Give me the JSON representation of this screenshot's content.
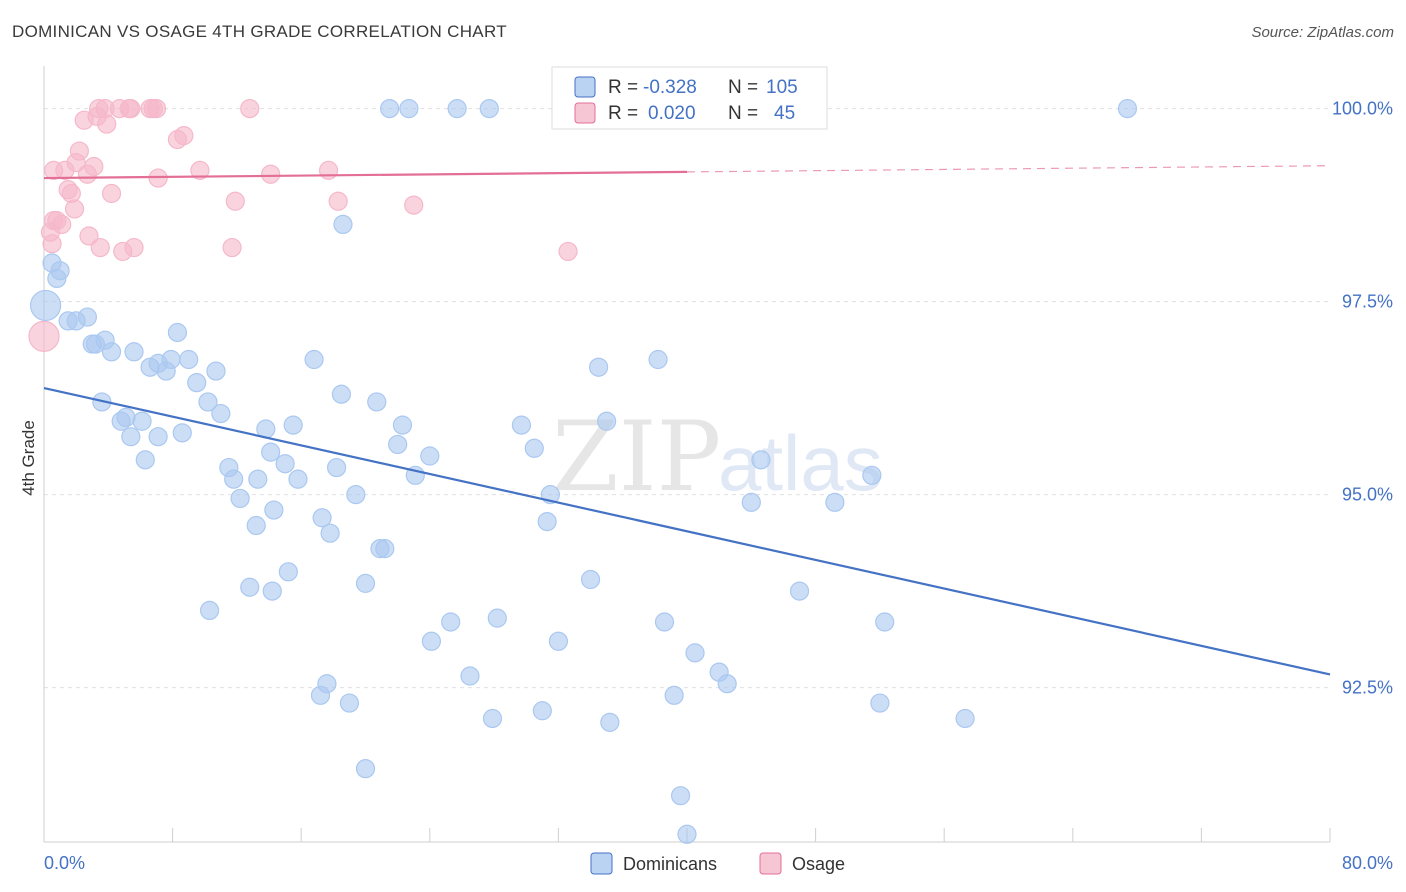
{
  "title": "DOMINICAN VS OSAGE 4TH GRADE CORRELATION CHART",
  "source": "Source: ZipAtlas.com",
  "watermark": {
    "zip": "ZIP",
    "atlas": "atlas"
  },
  "legend": {
    "rows": [
      {
        "r_label": "R = ",
        "r_value": "-0.328",
        "n_label": "N = ",
        "n_value": "105",
        "color": "#aac8f0"
      },
      {
        "r_label": "R = ",
        "r_value": "0.020",
        "n_label": "N = ",
        "n_value": "45",
        "color": "#f5b8ca"
      }
    ]
  },
  "chart_data": {
    "type": "scatter",
    "title": "DOMINICAN VS OSAGE 4TH GRADE CORRELATION CHART",
    "xlabel": "",
    "ylabel": "4th Grade",
    "xlim": [
      0,
      80
    ],
    "ylim": [
      90.5,
      100.5
    ],
    "x_tick_labels": [
      "0.0%",
      "80.0%"
    ],
    "y_ticks": [
      92.5,
      95.0,
      97.5,
      100.0
    ],
    "y_tick_labels": [
      "92.5%",
      "95.0%",
      "97.5%",
      "100.0%"
    ],
    "grid": true,
    "legend_position": "top-center",
    "series": [
      {
        "name": "Dominicans",
        "color": "#4472c4",
        "fill": "#aac8f0",
        "trend": {
          "x": [
            0,
            80
          ],
          "y": [
            96.38,
            92.67
          ]
        },
        "points": [
          [
            0.1,
            97.45
          ],
          [
            0.5,
            98.0
          ],
          [
            0.8,
            97.8
          ],
          [
            1.0,
            97.9
          ],
          [
            1.5,
            97.25
          ],
          [
            2.0,
            97.25
          ],
          [
            2.7,
            97.3
          ],
          [
            3.0,
            96.95
          ],
          [
            3.2,
            96.95
          ],
          [
            3.8,
            97.0
          ],
          [
            4.2,
            96.85
          ],
          [
            5.6,
            96.85
          ],
          [
            6.6,
            96.65
          ],
          [
            7.1,
            96.7
          ],
          [
            7.6,
            96.6
          ],
          [
            7.9,
            96.75
          ],
          [
            8.3,
            97.1
          ],
          [
            9.0,
            96.75
          ],
          [
            9.5,
            96.45
          ],
          [
            10.7,
            96.6
          ],
          [
            3.6,
            96.2
          ],
          [
            4.8,
            95.95
          ],
          [
            5.1,
            96.0
          ],
          [
            5.4,
            95.75
          ],
          [
            6.1,
            95.95
          ],
          [
            6.3,
            95.45
          ],
          [
            7.1,
            95.75
          ],
          [
            8.6,
            95.8
          ],
          [
            10.2,
            96.2
          ],
          [
            11.0,
            96.05
          ],
          [
            11.5,
            95.35
          ],
          [
            11.8,
            95.2
          ],
          [
            12.2,
            94.95
          ],
          [
            13.3,
            95.2
          ],
          [
            13.8,
            95.85
          ],
          [
            14.1,
            95.55
          ],
          [
            14.3,
            94.8
          ],
          [
            15.0,
            95.4
          ],
          [
            15.5,
            95.9
          ],
          [
            15.8,
            95.2
          ],
          [
            16.8,
            96.75
          ],
          [
            17.3,
            94.7
          ],
          [
            17.8,
            94.5
          ],
          [
            18.2,
            95.35
          ],
          [
            18.5,
            96.3
          ],
          [
            19.4,
            95.0
          ],
          [
            20.0,
            93.85
          ],
          [
            20.7,
            96.2
          ],
          [
            20.9,
            94.3
          ],
          [
            21.2,
            94.3
          ],
          [
            22.0,
            95.65
          ],
          [
            22.3,
            95.9
          ],
          [
            23.1,
            95.25
          ],
          [
            24.0,
            95.5
          ],
          [
            13.2,
            94.6
          ],
          [
            12.8,
            93.8
          ],
          [
            10.3,
            93.5
          ],
          [
            14.2,
            93.75
          ],
          [
            15.2,
            94.0
          ],
          [
            17.2,
            92.4
          ],
          [
            17.6,
            92.55
          ],
          [
            19.0,
            92.3
          ],
          [
            20.0,
            91.45
          ],
          [
            24.1,
            93.1
          ],
          [
            25.3,
            93.35
          ],
          [
            26.5,
            92.65
          ],
          [
            27.9,
            92.1
          ],
          [
            28.2,
            93.4
          ],
          [
            29.7,
            95.9
          ],
          [
            30.5,
            95.6
          ],
          [
            31.0,
            92.2
          ],
          [
            31.3,
            94.65
          ],
          [
            31.5,
            95.0
          ],
          [
            32.0,
            93.1
          ],
          [
            34.0,
            93.9
          ],
          [
            34.5,
            96.65
          ],
          [
            35.0,
            95.95
          ],
          [
            35.2,
            92.05
          ],
          [
            38.2,
            96.75
          ],
          [
            38.6,
            93.35
          ],
          [
            39.2,
            92.4
          ],
          [
            39.6,
            91.1
          ],
          [
            40.0,
            90.6
          ],
          [
            40.5,
            92.95
          ],
          [
            42.0,
            92.7
          ],
          [
            42.5,
            92.55
          ],
          [
            44.0,
            94.9
          ],
          [
            44.6,
            95.45
          ],
          [
            47.0,
            93.75
          ],
          [
            49.2,
            94.9
          ],
          [
            51.5,
            95.25
          ],
          [
            52.0,
            92.3
          ],
          [
            52.3,
            93.35
          ],
          [
            57.3,
            92.1
          ],
          [
            21.5,
            100.0
          ],
          [
            22.7,
            100.0
          ],
          [
            25.7,
            100.0
          ],
          [
            27.7,
            100.0
          ],
          [
            18.6,
            98.5
          ],
          [
            67.4,
            100.0
          ],
          [
            33.2,
            100.0
          ]
        ]
      },
      {
        "name": "Osage",
        "color": "#e36f96",
        "fill": "#f5b8ca",
        "trend": {
          "x": [
            0,
            40
          ],
          "y": [
            99.1,
            99.18
          ]
        },
        "trend_dashed": {
          "x": [
            40,
            80
          ],
          "y": [
            99.18,
            99.26
          ]
        },
        "points": [
          [
            0.0,
            97.05
          ],
          [
            0.4,
            98.4
          ],
          [
            0.5,
            98.25
          ],
          [
            0.6,
            98.55
          ],
          [
            0.8,
            98.55
          ],
          [
            1.1,
            98.5
          ],
          [
            0.6,
            99.2
          ],
          [
            1.3,
            99.2
          ],
          [
            1.5,
            98.95
          ],
          [
            1.7,
            98.9
          ],
          [
            1.9,
            98.7
          ],
          [
            2.0,
            99.3
          ],
          [
            2.2,
            99.45
          ],
          [
            2.5,
            99.85
          ],
          [
            2.7,
            99.15
          ],
          [
            2.8,
            98.35
          ],
          [
            3.1,
            99.25
          ],
          [
            3.3,
            99.9
          ],
          [
            3.4,
            100.0
          ],
          [
            3.5,
            98.2
          ],
          [
            3.8,
            100.0
          ],
          [
            3.9,
            99.8
          ],
          [
            4.2,
            98.9
          ],
          [
            4.7,
            100.0
          ],
          [
            4.9,
            98.15
          ],
          [
            5.3,
            100.0
          ],
          [
            5.4,
            100.0
          ],
          [
            5.6,
            98.2
          ],
          [
            6.6,
            100.0
          ],
          [
            6.8,
            100.0
          ],
          [
            7.0,
            100.0
          ],
          [
            7.1,
            99.1
          ],
          [
            8.3,
            99.6
          ],
          [
            8.7,
            99.65
          ],
          [
            9.7,
            99.2
          ],
          [
            11.7,
            98.2
          ],
          [
            11.9,
            98.8
          ],
          [
            12.8,
            100.0
          ],
          [
            14.1,
            99.15
          ],
          [
            17.7,
            99.2
          ],
          [
            18.3,
            98.8
          ],
          [
            23.0,
            98.75
          ],
          [
            32.6,
            98.15
          ]
        ]
      }
    ]
  }
}
